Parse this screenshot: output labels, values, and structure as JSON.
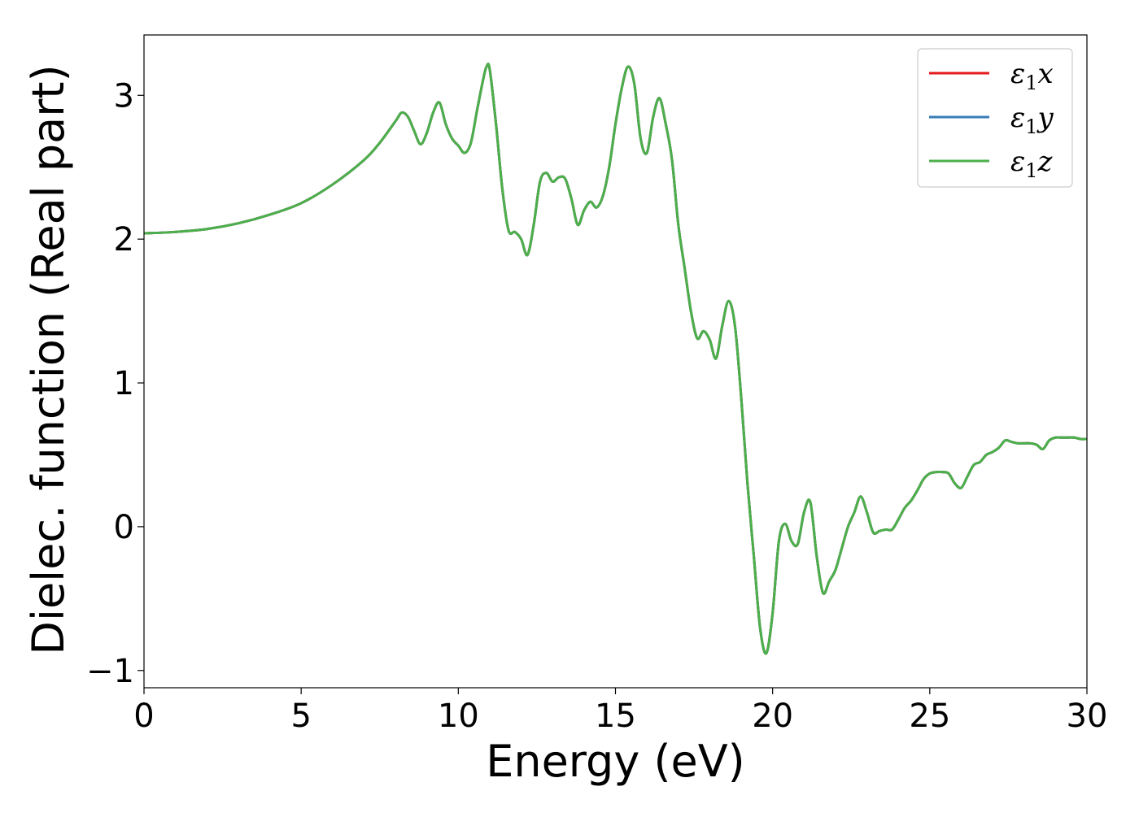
{
  "chart_data": {
    "type": "line",
    "title": "",
    "xlabel": "Energy (eV)",
    "ylabel": "Dielec. function (Real part)",
    "xlim": [
      0,
      30
    ],
    "ylim": [
      -1.12,
      3.42
    ],
    "x_ticks": [
      0,
      5,
      10,
      15,
      20,
      25,
      30
    ],
    "x_tick_labels": [
      "0",
      "5",
      "10",
      "15",
      "20",
      "25",
      "30"
    ],
    "y_ticks": [
      -1,
      0,
      1,
      2,
      3
    ],
    "y_tick_labels": [
      "−1",
      "0",
      "1",
      "2",
      "3"
    ],
    "grid": false,
    "legend_position": "top-right",
    "x": [
      0,
      1,
      2,
      3,
      4,
      5,
      6,
      7,
      7.5,
      8,
      8.2,
      8.4,
      8.6,
      8.8,
      9.0,
      9.2,
      9.4,
      9.6,
      9.8,
      10.0,
      10.2,
      10.4,
      10.6,
      10.8,
      10.9,
      11.0,
      11.2,
      11.4,
      11.6,
      11.8,
      12.0,
      12.2,
      12.4,
      12.6,
      12.8,
      13.0,
      13.2,
      13.4,
      13.6,
      13.8,
      14.0,
      14.2,
      14.4,
      14.6,
      14.8,
      15.0,
      15.2,
      15.4,
      15.6,
      15.8,
      16.0,
      16.2,
      16.4,
      16.6,
      16.8,
      17.0,
      17.2,
      17.4,
      17.6,
      17.8,
      18.0,
      18.2,
      18.4,
      18.6,
      18.8,
      19.0,
      19.2,
      19.4,
      19.6,
      19.8,
      20.0,
      20.2,
      20.4,
      20.6,
      20.8,
      21.0,
      21.2,
      21.4,
      21.6,
      21.8,
      22.0,
      22.2,
      22.4,
      22.6,
      22.8,
      23.0,
      23.2,
      23.4,
      23.6,
      23.8,
      24.0,
      24.2,
      24.4,
      24.6,
      24.8,
      25.0,
      25.2,
      25.4,
      25.6,
      25.8,
      26.0,
      26.2,
      26.4,
      26.6,
      26.8,
      27.0,
      27.2,
      27.4,
      27.6,
      27.8,
      28.0,
      28.2,
      28.4,
      28.6,
      28.8,
      29.0,
      29.2,
      29.4,
      29.6,
      29.8,
      30.0
    ],
    "y_shared": [
      2.04,
      2.05,
      2.07,
      2.11,
      2.17,
      2.25,
      2.38,
      2.55,
      2.67,
      2.82,
      2.88,
      2.85,
      2.75,
      2.66,
      2.74,
      2.88,
      2.95,
      2.8,
      2.7,
      2.65,
      2.6,
      2.67,
      2.9,
      3.12,
      3.2,
      3.18,
      2.8,
      2.35,
      2.06,
      2.05,
      2.0,
      1.89,
      2.1,
      2.4,
      2.46,
      2.4,
      2.43,
      2.42,
      2.28,
      2.1,
      2.2,
      2.26,
      2.22,
      2.3,
      2.5,
      2.8,
      3.05,
      3.2,
      3.08,
      2.7,
      2.6,
      2.85,
      2.98,
      2.8,
      2.55,
      2.1,
      1.8,
      1.5,
      1.31,
      1.36,
      1.3,
      1.17,
      1.4,
      1.57,
      1.4,
      0.9,
      0.3,
      -0.2,
      -0.7,
      -0.88,
      -0.6,
      -0.1,
      0.02,
      -0.1,
      -0.12,
      0.1,
      0.17,
      -0.2,
      -0.46,
      -0.38,
      -0.3,
      -0.15,
      0.0,
      0.1,
      0.21,
      0.1,
      -0.04,
      -0.03,
      -0.02,
      -0.02,
      0.05,
      0.13,
      0.18,
      0.25,
      0.33,
      0.37,
      0.38,
      0.38,
      0.37,
      0.3,
      0.27,
      0.35,
      0.43,
      0.45,
      0.5,
      0.52,
      0.55,
      0.6,
      0.59,
      0.58,
      0.58,
      0.58,
      0.57,
      0.54,
      0.6,
      0.62,
      0.62,
      0.62,
      0.62,
      0.61,
      0.61
    ],
    "series": [
      {
        "name": "ε₁x",
        "name_main": "ε",
        "name_sub": "1",
        "name_tail": "x",
        "color": "#e41a1c"
      },
      {
        "name": "ε₁y",
        "name_main": "ε",
        "name_sub": "1",
        "name_tail": "y",
        "color": "#377eb8"
      },
      {
        "name": "ε₁z",
        "name_main": "ε",
        "name_sub": "1",
        "name_tail": "z",
        "color": "#4daf4a"
      }
    ]
  }
}
